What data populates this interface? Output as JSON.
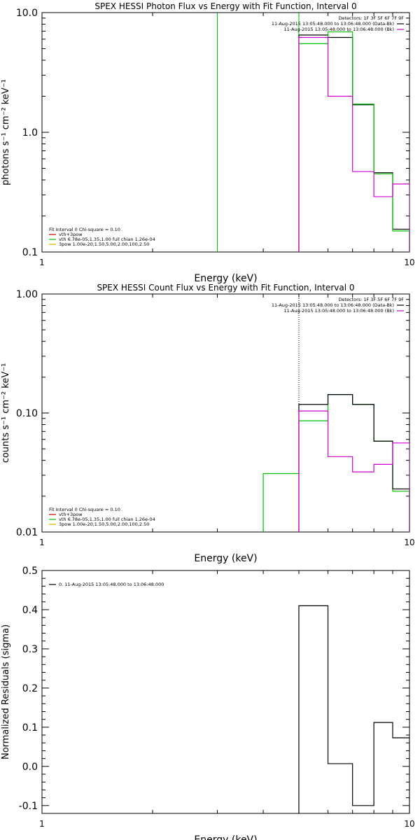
{
  "chart_data": [
    {
      "type": "line",
      "title": "SPEX HESSI Photon Flux vs Energy with Fit Function, Interval 0",
      "xlabel": "Energy (keV)",
      "ylabel": "photons s⁻¹ cm⁻² keV⁻¹",
      "xscale": "log",
      "yscale": "log",
      "xlim": [
        1,
        10
      ],
      "ylim": [
        0.1,
        10.0
      ],
      "xticks": [
        "1",
        "10"
      ],
      "yticks": [
        "0.1",
        "1.0",
        "10.0"
      ],
      "legend_tr": {
        "header": "Detectors: 1F 3F 5F 6F 7F 9F",
        "entries": [
          {
            "label": "11-Aug-2015 13:05:48.000 to 13:06:48.000 (Data-Bk)",
            "color": "#000000"
          },
          {
            "label": "11-Aug-2015 13:05:48.000 to 13:06:48.000 (Bk)",
            "color": "#d000d0"
          }
        ]
      },
      "legend_bl": {
        "header": "Fit Interval 0   Chi-square = 0.10",
        "entries": [
          {
            "label": "vth+3pow",
            "color": "#d00000"
          },
          {
            "label": "vth 6.78e-05,1.35,1.00   full chian 1.26e-04",
            "color": "#00c000"
          },
          {
            "label": "3pow 1.00e-20,1.50,5.00,2.00,100,2.50",
            "color": "#d8b000"
          }
        ]
      },
      "vlines": [
        {
          "x": 3.0,
          "color": "#00c000",
          "style": "solid"
        },
        {
          "x": 3.0,
          "color": "#00c000",
          "style": "solid",
          "x2": 5.0,
          "note": ""
        }
      ],
      "series": [
        {
          "color": "#000000",
          "edges": [
            5,
            6,
            7,
            8,
            9,
            10
          ],
          "values": [
            6.5,
            6.2,
            1.7,
            0.46,
            0.155
          ]
        },
        {
          "color": "#00c000",
          "edges": [
            5,
            6,
            7,
            8,
            9,
            10
          ],
          "values": [
            5.5,
            6.9,
            1.72,
            0.45,
            0.15
          ]
        },
        {
          "color": "#d000d0",
          "edges": [
            5,
            6,
            7,
            8,
            9,
            10
          ],
          "values": [
            6.2,
            2.0,
            0.47,
            0.29,
            0.37
          ]
        }
      ],
      "marker_x": 5.0
    },
    {
      "type": "line",
      "title": "SPEX HESSI Count Flux vs Energy with Fit Function, Interval 0",
      "xlabel": "Energy (keV)",
      "ylabel": "counts s⁻¹ cm⁻² keV⁻¹",
      "xscale": "log",
      "yscale": "log",
      "xlim": [
        1,
        10
      ],
      "ylim": [
        0.01,
        1.0
      ],
      "xticks": [
        "1",
        "10"
      ],
      "yticks": [
        "0.01",
        "0.10",
        "1.00"
      ],
      "legend_tr": {
        "header": "Detectors: 1F 3F 5F 6F 7F 9F",
        "entries": [
          {
            "label": "11-Aug-2015 13:05:48.000 to 13:06:48.000 (Data-Bk)",
            "color": "#000000"
          },
          {
            "label": "11-Aug-2015 13:05:48.000 to 13:06:48.000 (Bk)",
            "color": "#d000d0"
          }
        ]
      },
      "legend_bl": {
        "header": "Fit Interval 0   Chi-square = 0.10",
        "entries": [
          {
            "label": "vth+3pow",
            "color": "#d00000"
          },
          {
            "label": "vth 6.78e-05,1.35,1.00   full chian 1.26e-04",
            "color": "#00c000"
          },
          {
            "label": "3pow 1.00e-20,1.50,5.00,2.00,100,2.50",
            "color": "#d8b000"
          }
        ]
      },
      "series": [
        {
          "color": "#00c000",
          "edges": [
            4,
            5,
            6,
            7,
            8,
            9,
            10
          ],
          "values": [
            0.031,
            0.086,
            0.143,
            0.118,
            0.058,
            0.022
          ]
        },
        {
          "color": "#000000",
          "edges": [
            5,
            6,
            7,
            8,
            9,
            10
          ],
          "values": [
            0.118,
            0.143,
            0.118,
            0.058,
            0.023
          ]
        },
        {
          "color": "#d000d0",
          "edges": [
            5,
            6,
            7,
            8,
            9,
            10
          ],
          "values": [
            0.104,
            0.043,
            0.032,
            0.037,
            0.056
          ]
        }
      ],
      "marker_x": 5.0
    },
    {
      "type": "line",
      "title": "",
      "xlabel": "Energy (keV)",
      "ylabel": "Normalized Residuals (sigma)",
      "xscale": "log",
      "yscale": "linear",
      "xlim": [
        1,
        10
      ],
      "ylim": [
        -0.12,
        0.5
      ],
      "xticks": [
        "1",
        "10"
      ],
      "yticks": [
        "-0.1",
        "0.0",
        "0.1",
        "0.2",
        "0.3",
        "0.4",
        "0.5"
      ],
      "legend_tl": {
        "entries": [
          {
            "label": "0. 11-Aug-2015 13:05:48.000 to 13:06:48.000",
            "color": "#000000"
          }
        ]
      },
      "series": [
        {
          "color": "#000000",
          "edges": [
            5,
            6,
            7,
            8,
            9,
            10
          ],
          "values": [
            0.41,
            0.007,
            -0.1,
            0.112,
            0.073
          ]
        }
      ]
    }
  ]
}
